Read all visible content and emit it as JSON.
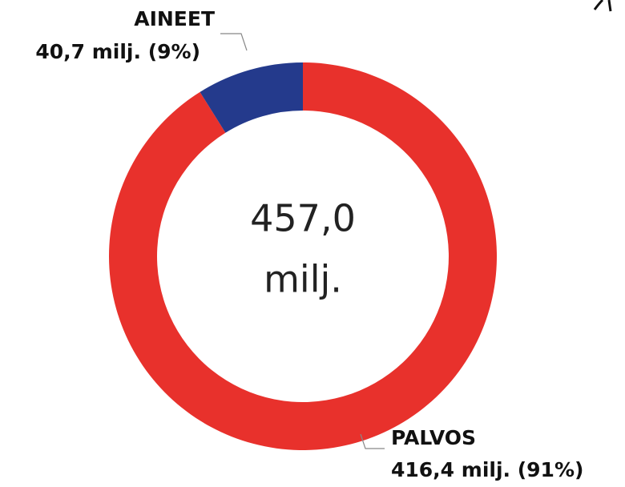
{
  "chart_data": {
    "type": "donut",
    "categories": [
      "PALVOS",
      "AINEET"
    ],
    "values": [
      416.4,
      40.7
    ],
    "value_labels": [
      "416,4 milj. (91%)",
      "40,7 milj. (9%)"
    ],
    "colors": [
      "#e8312c",
      "#243a8c"
    ],
    "center_text": [
      "457,0",
      "milj."
    ]
  }
}
